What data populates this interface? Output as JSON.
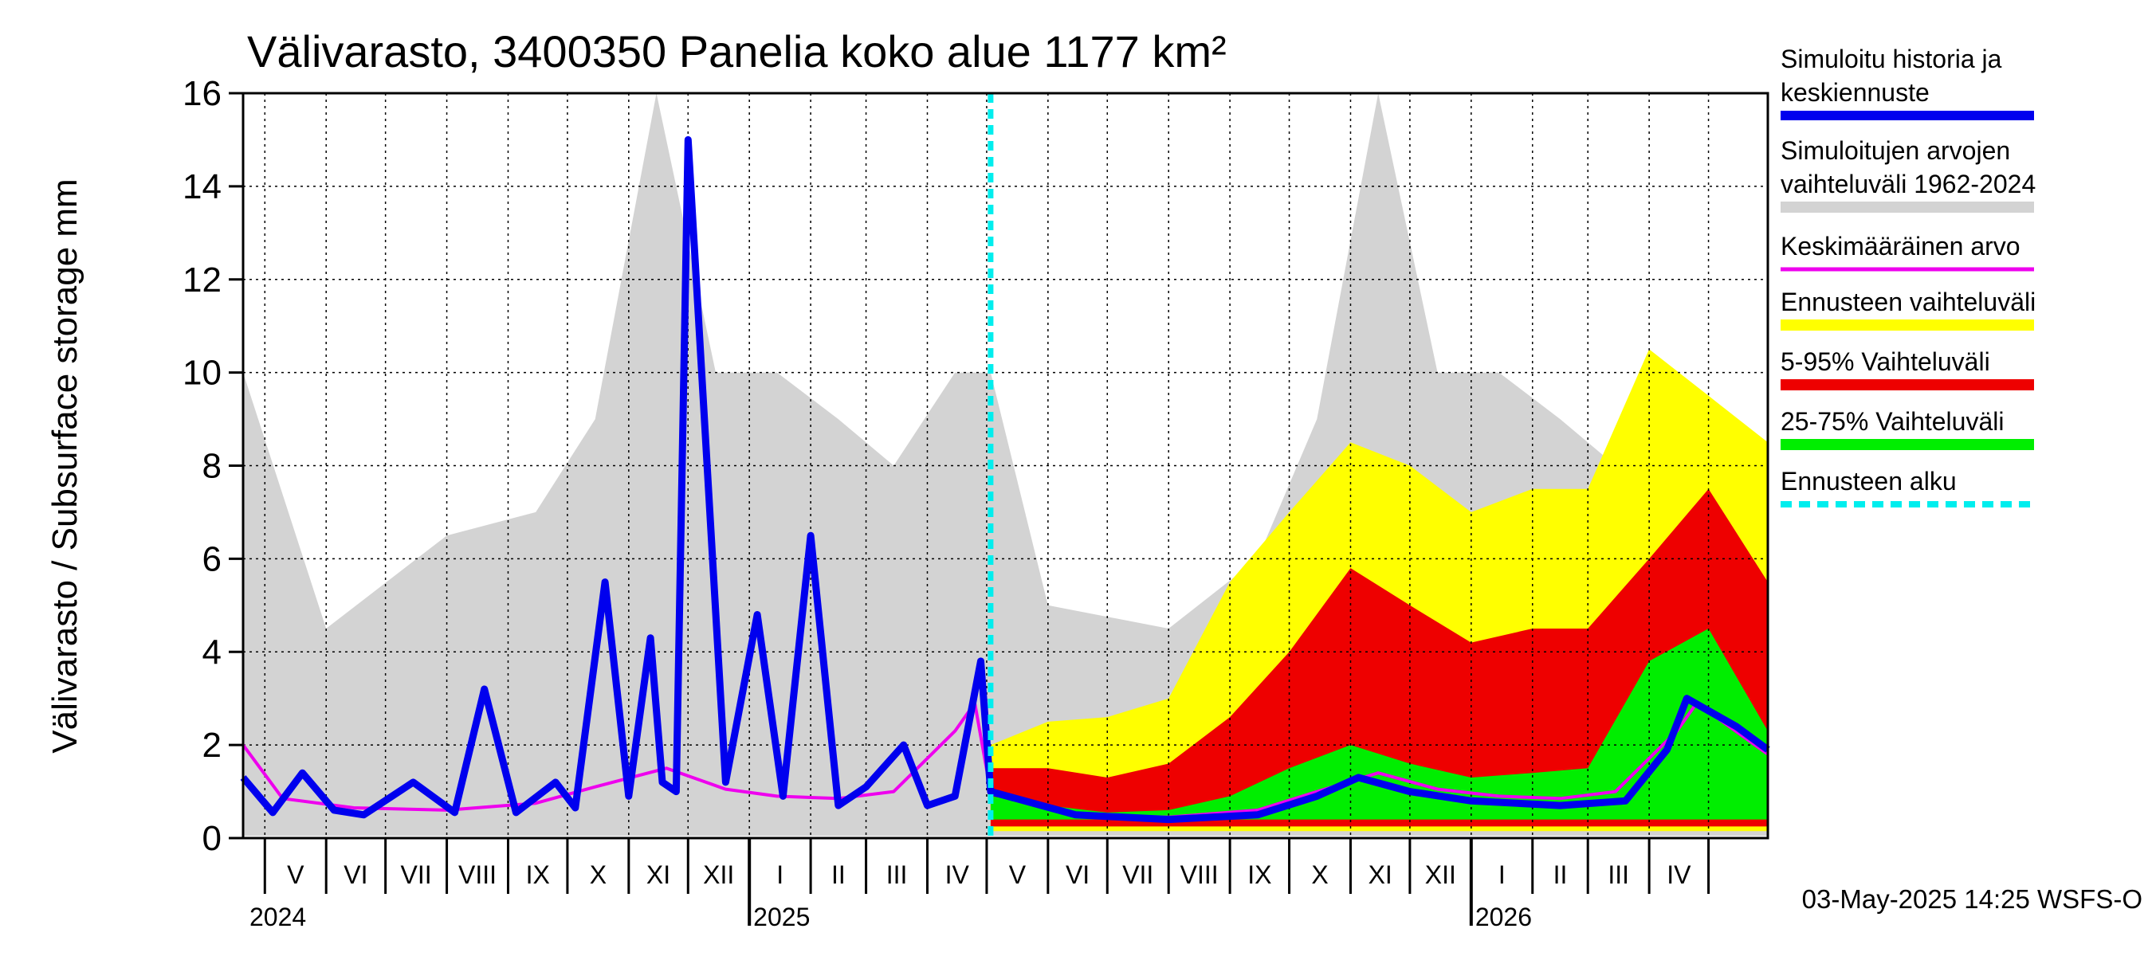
{
  "chart_data": {
    "type": "area",
    "title": "Välivarasto, 3400350 Panelia koko alue 1177 km²",
    "ylabel": "Välivarasto / Subsurface storage  mm",
    "ylim": [
      0,
      16
    ],
    "y_ticks": [
      0,
      2,
      4,
      6,
      8,
      10,
      12,
      14,
      16
    ],
    "x_range": [
      "2024-04-20",
      "2026-05-31"
    ],
    "forecast_start": "2025-05-03",
    "grid": true,
    "legend_position": "right",
    "months": [
      "V",
      "VI",
      "VII",
      "VIII",
      "IX",
      "X",
      "XI",
      "XII",
      "I",
      "II",
      "III",
      "IV",
      "V",
      "VI",
      "VII",
      "VIII",
      "IX",
      "X",
      "XI",
      "XII",
      "I",
      "II",
      "III",
      "IV"
    ],
    "years": [
      "2024",
      "2025",
      "2026"
    ],
    "footer": "03-May-2025 14:25 WSFS-O",
    "legend": [
      {
        "key": "sim",
        "label": "Simuloitu historia ja keskiennuste",
        "color": "#0000ee",
        "style": "line"
      },
      {
        "key": "range",
        "label": "Simuloitujen arvojen vaihteluväli 1962-2024",
        "color": "#d3d3d3",
        "style": "band"
      },
      {
        "key": "mean",
        "label": "Keskimääräinen arvo",
        "color": "#ee00ee",
        "style": "line"
      },
      {
        "key": "fc",
        "label": "Ennusteen vaihteluväli",
        "color": "#ffff00",
        "style": "band"
      },
      {
        "key": "p595",
        "label": "5-95% Vaihteluväli",
        "color": "#ee0000",
        "style": "band"
      },
      {
        "key": "p2575",
        "label": "25-75% Vaihteluväli",
        "color": "#00ee00",
        "style": "band"
      },
      {
        "key": "start",
        "label": "Ennusteen alku",
        "color": "#00eeee",
        "style": "dashed"
      }
    ],
    "series": [
      {
        "name": "Simuloitu historia ja keskiennuste",
        "x": [
          "2024-04-20",
          "2024-05-05",
          "2024-05-20",
          "2024-06-05",
          "2024-06-20",
          "2024-07-15",
          "2024-08-05",
          "2024-08-20",
          "2024-09-05",
          "2024-09-25",
          "2024-10-05",
          "2024-10-20",
          "2024-11-01",
          "2024-11-12",
          "2024-11-18",
          "2024-11-25",
          "2024-12-01",
          "2024-12-20",
          "2025-01-05",
          "2025-01-18",
          "2025-02-01",
          "2025-02-15",
          "2025-03-01",
          "2025-03-20",
          "2025-04-01",
          "2025-04-15",
          "2025-04-28",
          "2025-05-03",
          "2025-06-15",
          "2025-08-01",
          "2025-09-15",
          "2025-10-15",
          "2025-11-05",
          "2025-12-01",
          "2026-01-01",
          "2026-02-15",
          "2026-03-20",
          "2026-04-10",
          "2026-04-20",
          "2026-05-15",
          "2026-05-31"
        ],
        "values": [
          1.3,
          0.55,
          1.4,
          0.6,
          0.5,
          1.2,
          0.55,
          3.2,
          0.55,
          1.2,
          0.65,
          5.5,
          0.9,
          4.3,
          1.2,
          1.0,
          15.0,
          1.2,
          4.8,
          0.9,
          6.5,
          0.7,
          1.1,
          2.0,
          0.7,
          0.9,
          3.8,
          1.0,
          0.5,
          0.4,
          0.5,
          0.9,
          1.3,
          1.0,
          0.8,
          0.7,
          0.8,
          1.9,
          3.0,
          2.4,
          1.9
        ]
      },
      {
        "name": "Keskimääräinen arvo",
        "x": [
          "2024-04-20",
          "2024-05-10",
          "2024-06-15",
          "2024-08-01",
          "2024-09-15",
          "2024-10-15",
          "2024-11-20",
          "2024-12-20",
          "2025-01-15",
          "2025-02-15",
          "2025-03-15",
          "2025-04-15",
          "2025-04-25",
          "2025-05-03",
          "2025-06-15",
          "2025-08-01",
          "2025-09-15",
          "2025-10-15",
          "2025-11-15",
          "2025-12-15",
          "2026-01-15",
          "2026-02-15",
          "2026-03-15",
          "2026-04-15",
          "2026-04-25",
          "2026-05-31"
        ],
        "values": [
          2.0,
          0.85,
          0.65,
          0.6,
          0.75,
          1.1,
          1.5,
          1.05,
          0.9,
          0.85,
          1.0,
          2.3,
          2.9,
          1.0,
          0.5,
          0.45,
          0.6,
          1.0,
          1.4,
          1.05,
          0.9,
          0.85,
          1.0,
          2.3,
          2.9,
          1.8
        ]
      },
      {
        "name": "Simuloitujen arvojen vaihteluväli 1962-2024",
        "x": [
          "2024-04-20",
          "2024-06-01",
          "2024-08-01",
          "2024-09-15",
          "2024-10-15",
          "2024-11-15",
          "2024-12-15",
          "2025-01-15",
          "2025-02-15",
          "2025-03-15",
          "2025-04-15",
          "2025-05-03",
          "2025-06-01",
          "2025-08-01",
          "2025-09-15",
          "2025-10-15",
          "2025-11-15",
          "2025-12-15",
          "2026-01-15",
          "2026-02-15",
          "2026-03-15",
          "2026-04-15",
          "2026-05-31"
        ],
        "values": [
          10.0,
          4.5,
          6.5,
          7.0,
          9.0,
          16.0,
          10.0,
          10.0,
          9.0,
          8.0,
          10.0,
          10.0,
          5.0,
          4.5,
          6.0,
          9.0,
          16.0,
          10.0,
          10.0,
          9.0,
          8.0,
          10.0,
          8.5
        ]
      },
      {
        "name": "Ennusteen vaihteluväli",
        "x": [
          "2025-05-03",
          "2025-06-01",
          "2025-07-01",
          "2025-08-01",
          "2025-09-01",
          "2025-10-01",
          "2025-11-01",
          "2025-12-01",
          "2026-01-01",
          "2026-02-01",
          "2026-03-01",
          "2026-04-01",
          "2026-05-01",
          "2026-05-31"
        ],
        "values": [
          2.0,
          2.5,
          2.6,
          3.0,
          5.5,
          7.0,
          8.5,
          8.0,
          7.0,
          7.5,
          7.5,
          10.5,
          9.5,
          8.5
        ]
      },
      {
        "name": "5-95% Vaihteluväli",
        "x": [
          "2025-05-03",
          "2025-06-01",
          "2025-07-01",
          "2025-08-01",
          "2025-09-01",
          "2025-10-01",
          "2025-11-01",
          "2025-12-01",
          "2026-01-01",
          "2026-02-01",
          "2026-03-01",
          "2026-04-01",
          "2026-05-01",
          "2026-05-31"
        ],
        "values": [
          1.5,
          1.5,
          1.3,
          1.6,
          2.6,
          4.0,
          5.8,
          5.0,
          4.2,
          4.5,
          4.5,
          6.0,
          7.5,
          5.5
        ]
      },
      {
        "name": "25-75% Vaihteluväli",
        "x": [
          "2025-05-03",
          "2025-06-01",
          "2025-07-01",
          "2025-08-01",
          "2025-09-01",
          "2025-10-01",
          "2025-11-01",
          "2025-12-01",
          "2026-01-01",
          "2026-02-01",
          "2026-03-01",
          "2026-04-01",
          "2026-05-01",
          "2026-05-31"
        ],
        "values": [
          0.9,
          0.7,
          0.55,
          0.6,
          0.9,
          1.5,
          2.0,
          1.6,
          1.3,
          1.4,
          1.5,
          3.8,
          4.5,
          2.3
        ]
      }
    ]
  }
}
